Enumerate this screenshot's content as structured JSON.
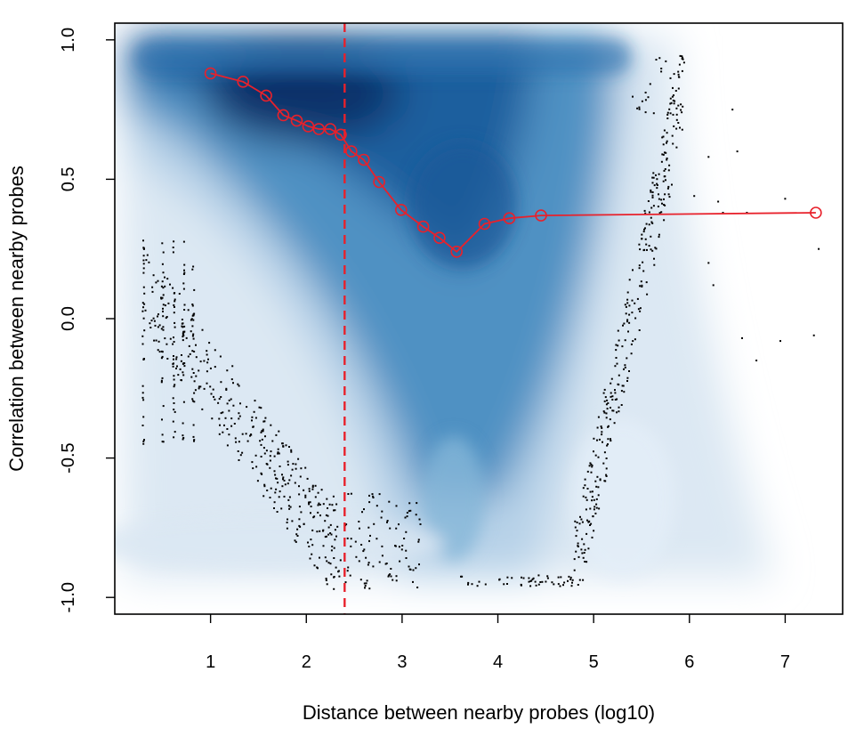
{
  "chart_data": {
    "type": "scatter",
    "title": "",
    "xlabel": "Distance between nearby probes (log10)",
    "ylabel": "Correlation between nearby probes",
    "xlim": [
      0.0,
      7.6
    ],
    "ylim": [
      -1.06,
      1.06
    ],
    "xticks": [
      1,
      2,
      3,
      4,
      5,
      6,
      7
    ],
    "xtick_labels": [
      "1",
      "2",
      "3",
      "4",
      "5",
      "6",
      "7"
    ],
    "yticks": [
      -1.0,
      -0.5,
      0.0,
      0.5,
      1.0
    ],
    "ytick_labels": [
      "-1.0",
      "-0.5",
      "0.0",
      "0.5",
      "1.0"
    ],
    "grid": false,
    "legend": "none",
    "reference_line": {
      "orientation": "vertical",
      "x": 2.4,
      "style": "dashed",
      "color": "#e8212b"
    },
    "density": {
      "style": "smoothed scatter",
      "color": "#08306b"
    },
    "series": [
      {
        "type": "line",
        "color": "#e8212b",
        "x": [
          1.0,
          1.34,
          1.58,
          1.76,
          1.9,
          2.02,
          2.13,
          2.25,
          2.36,
          2.47,
          2.6,
          2.76,
          2.99,
          3.22,
          3.39,
          3.57,
          3.86,
          4.12,
          4.45,
          7.32
        ],
        "y": [
          0.88,
          0.85,
          0.8,
          0.73,
          0.71,
          0.69,
          0.68,
          0.68,
          0.66,
          0.6,
          0.57,
          0.49,
          0.39,
          0.33,
          0.29,
          0.24,
          0.34,
          0.36,
          0.37,
          0.38
        ]
      }
    ]
  }
}
